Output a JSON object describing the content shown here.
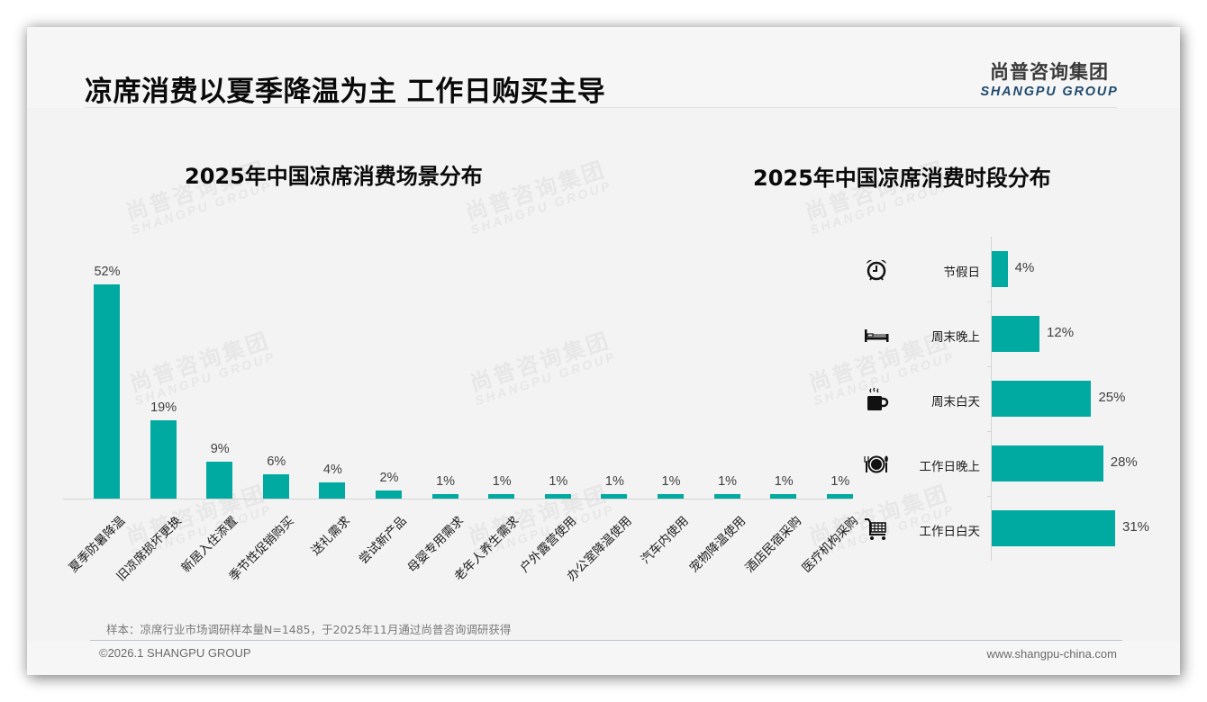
{
  "header": {
    "title": "凉席消费以夏季降温为主 工作日购买主导",
    "logo_cn": "尚普咨询集团",
    "logo_en": "SHANGPU GROUP"
  },
  "watermark": {
    "cn": "尚普咨询集团",
    "en": "SHANGPU GROUP"
  },
  "colors": {
    "bar": "#00aaa0",
    "logo_en": "#1e4a6e",
    "title": "#0a0a0a",
    "value_label": "#404040"
  },
  "chart_data": [
    {
      "type": "bar",
      "orientation": "vertical",
      "title": "2025年中国凉席消费场景分布",
      "xlabel": "",
      "ylabel": "",
      "ylim": [
        0,
        52
      ],
      "grid": false,
      "legend": "none",
      "categories": [
        "夏季防暑降温",
        "旧凉席损坏更换",
        "新居入住添置",
        "季节性促销购买",
        "送礼需求",
        "尝试新产品",
        "母婴专用需求",
        "老年人养生需求",
        "户外露营使用",
        "办公室降温使用",
        "汽车内使用",
        "宠物降温使用",
        "酒店民宿采购",
        "医疗机构采购"
      ],
      "values": [
        52,
        19,
        9,
        6,
        4,
        2,
        1,
        1,
        1,
        1,
        1,
        1,
        1,
        1
      ],
      "labels": [
        "52%",
        "19%",
        "9%",
        "6%",
        "4%",
        "2%",
        "1%",
        "1%",
        "1%",
        "1%",
        "1%",
        "1%",
        "1%",
        "1%"
      ]
    },
    {
      "type": "bar",
      "orientation": "horizontal",
      "title": "2025年中国凉席消费时段分布",
      "xlabel": "",
      "ylabel": "",
      "xlim": [
        0,
        31
      ],
      "grid": false,
      "legend": "none",
      "categories": [
        "节假日",
        "周末晚上",
        "周末白天",
        "工作日晚上",
        "工作日白天"
      ],
      "icons": [
        "alarm-clock-icon",
        "bed-icon",
        "hot-coffee-mug-icon",
        "plate-cutlery-icon",
        "shopping-cart-icon"
      ],
      "values": [
        4,
        12,
        25,
        28,
        31
      ],
      "labels": [
        "4%",
        "12%",
        "25%",
        "28%",
        "31%"
      ]
    }
  ],
  "footer": {
    "note": "样本：凉席行业市场调研样本量N=1485，于2025年11月通过尚普咨询调研获得",
    "copyright": "©2026.1 SHANGPU GROUP",
    "website": "www.shangpu-china.com"
  }
}
